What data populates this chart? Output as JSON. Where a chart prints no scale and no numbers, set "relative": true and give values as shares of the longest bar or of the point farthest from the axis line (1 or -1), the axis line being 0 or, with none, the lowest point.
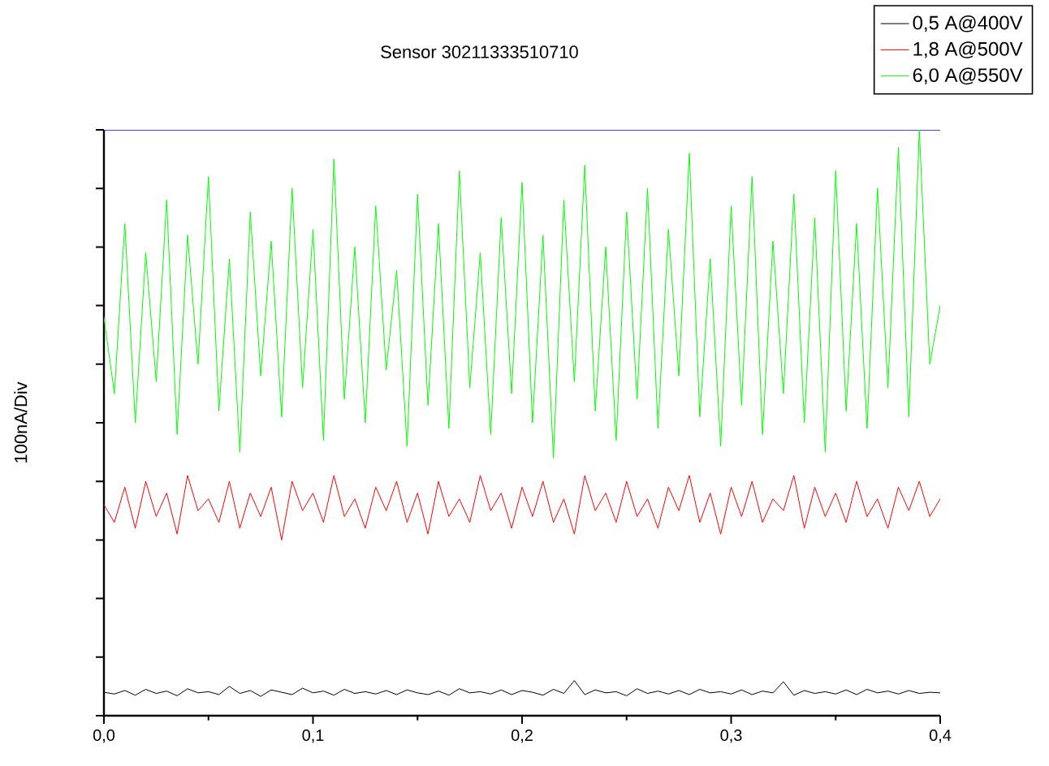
{
  "chart_data": {
    "type": "line",
    "title": "Sensor 30211333510710",
    "ylabel": "100nA/Div",
    "relative": true,
    "x": [
      0,
      0.005,
      0.01,
      0.015,
      0.02,
      0.025,
      0.03,
      0.035,
      0.04,
      0.045,
      0.05,
      0.055,
      0.06,
      0.065,
      0.07,
      0.075,
      0.08,
      0.085,
      0.09,
      0.095,
      0.1,
      0.105,
      0.11,
      0.115,
      0.12,
      0.125,
      0.13,
      0.135,
      0.14,
      0.145,
      0.15,
      0.155,
      0.16,
      0.165,
      0.17,
      0.175,
      0.18,
      0.185,
      0.19,
      0.195,
      0.2,
      0.205,
      0.21,
      0.215,
      0.22,
      0.225,
      0.23,
      0.235,
      0.24,
      0.245,
      0.25,
      0.255,
      0.26,
      0.265,
      0.27,
      0.275,
      0.28,
      0.285,
      0.29,
      0.295,
      0.3,
      0.305,
      0.31,
      0.315,
      0.32,
      0.325,
      0.33,
      0.335,
      0.34,
      0.345,
      0.35,
      0.355,
      0.36,
      0.365,
      0.37,
      0.375,
      0.38,
      0.385,
      0.39,
      0.395,
      0.4
    ],
    "xlim": [
      0,
      0.4
    ],
    "xticks": [
      {
        "value": 0,
        "label": "0,0"
      },
      {
        "value": 0.1,
        "label": "0,1"
      },
      {
        "value": 0.2,
        "label": "0,2"
      },
      {
        "value": 0.3,
        "label": "0,3"
      },
      {
        "value": 0.4,
        "label": "0,4"
      }
    ],
    "legend": "top right",
    "marker": "none",
    "line_style": "solid",
    "ref_lines": [
      {
        "axis": "y",
        "value": 1.0,
        "color": "#0000ff"
      }
    ],
    "series": [
      {
        "name": "0,5 A@400V",
        "color": "#000000",
        "values": [
          0.04,
          0.037,
          0.043,
          0.035,
          0.045,
          0.038,
          0.042,
          0.034,
          0.046,
          0.039,
          0.041,
          0.036,
          0.05,
          0.038,
          0.043,
          0.033,
          0.044,
          0.04,
          0.036,
          0.047,
          0.039,
          0.042,
          0.035,
          0.045,
          0.038,
          0.041,
          0.037,
          0.043,
          0.036,
          0.044,
          0.039,
          0.036,
          0.042,
          0.035,
          0.046,
          0.039,
          0.041,
          0.037,
          0.044,
          0.036,
          0.043,
          0.04,
          0.035,
          0.045,
          0.038,
          0.06,
          0.036,
          0.044,
          0.039,
          0.041,
          0.034,
          0.046,
          0.038,
          0.042,
          0.037,
          0.043,
          0.036,
          0.045,
          0.039,
          0.041,
          0.037,
          0.044,
          0.036,
          0.042,
          0.039,
          0.058,
          0.035,
          0.043,
          0.038,
          0.041,
          0.037,
          0.044,
          0.036,
          0.045,
          0.039,
          0.042,
          0.037,
          0.043,
          0.038,
          0.04,
          0.039
        ]
      },
      {
        "name": "1,8 A@500V",
        "color": "#ff0000",
        "values": [
          0.36,
          0.33,
          0.39,
          0.32,
          0.4,
          0.34,
          0.38,
          0.31,
          0.41,
          0.35,
          0.37,
          0.33,
          0.4,
          0.32,
          0.38,
          0.34,
          0.39,
          0.3,
          0.4,
          0.35,
          0.38,
          0.33,
          0.41,
          0.34,
          0.37,
          0.32,
          0.39,
          0.35,
          0.4,
          0.33,
          0.38,
          0.31,
          0.4,
          0.34,
          0.37,
          0.33,
          0.41,
          0.35,
          0.38,
          0.32,
          0.39,
          0.34,
          0.4,
          0.33,
          0.37,
          0.31,
          0.41,
          0.35,
          0.38,
          0.33,
          0.4,
          0.34,
          0.37,
          0.32,
          0.39,
          0.35,
          0.41,
          0.33,
          0.38,
          0.31,
          0.39,
          0.34,
          0.4,
          0.33,
          0.37,
          0.35,
          0.41,
          0.32,
          0.39,
          0.34,
          0.38,
          0.33,
          0.4,
          0.34,
          0.37,
          0.32,
          0.39,
          0.35,
          0.4,
          0.34,
          0.37
        ]
      },
      {
        "name": "6,0 A@550V",
        "color": "#00ff00",
        "values": [
          0.68,
          0.55,
          0.84,
          0.5,
          0.79,
          0.57,
          0.88,
          0.48,
          0.82,
          0.6,
          0.92,
          0.52,
          0.78,
          0.45,
          0.86,
          0.58,
          0.81,
          0.51,
          0.9,
          0.56,
          0.83,
          0.47,
          0.95,
          0.54,
          0.8,
          0.5,
          0.87,
          0.59,
          0.76,
          0.46,
          0.89,
          0.53,
          0.84,
          0.49,
          0.93,
          0.56,
          0.79,
          0.48,
          0.85,
          0.55,
          0.91,
          0.5,
          0.82,
          0.44,
          0.88,
          0.57,
          0.94,
          0.52,
          0.8,
          0.47,
          0.86,
          0.54,
          0.9,
          0.49,
          0.83,
          0.58,
          0.96,
          0.51,
          0.78,
          0.46,
          0.87,
          0.53,
          0.92,
          0.48,
          0.81,
          0.55,
          0.89,
          0.5,
          0.85,
          0.45,
          0.93,
          0.52,
          0.84,
          0.49,
          0.9,
          0.56,
          0.97,
          0.51,
          1.0,
          0.6,
          0.7
        ]
      }
    ]
  }
}
